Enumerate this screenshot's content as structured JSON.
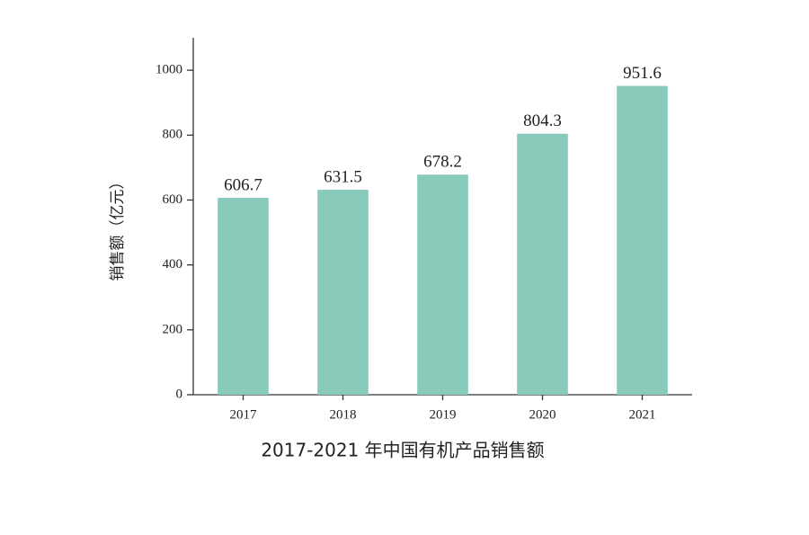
{
  "chart_data": {
    "type": "bar",
    "title": "2017-2021 年中国有机产品销售额",
    "y_label": "销售额（亿元）",
    "categories": [
      "2017",
      "2018",
      "2019",
      "2020",
      "2021"
    ],
    "values": [
      606.7,
      631.5,
      678.2,
      804.3,
      951.6
    ],
    "color": "#88cbbb",
    "ylim": [
      0,
      1100
    ],
    "yticks": [
      0,
      200,
      400,
      600,
      800,
      1000
    ]
  }
}
